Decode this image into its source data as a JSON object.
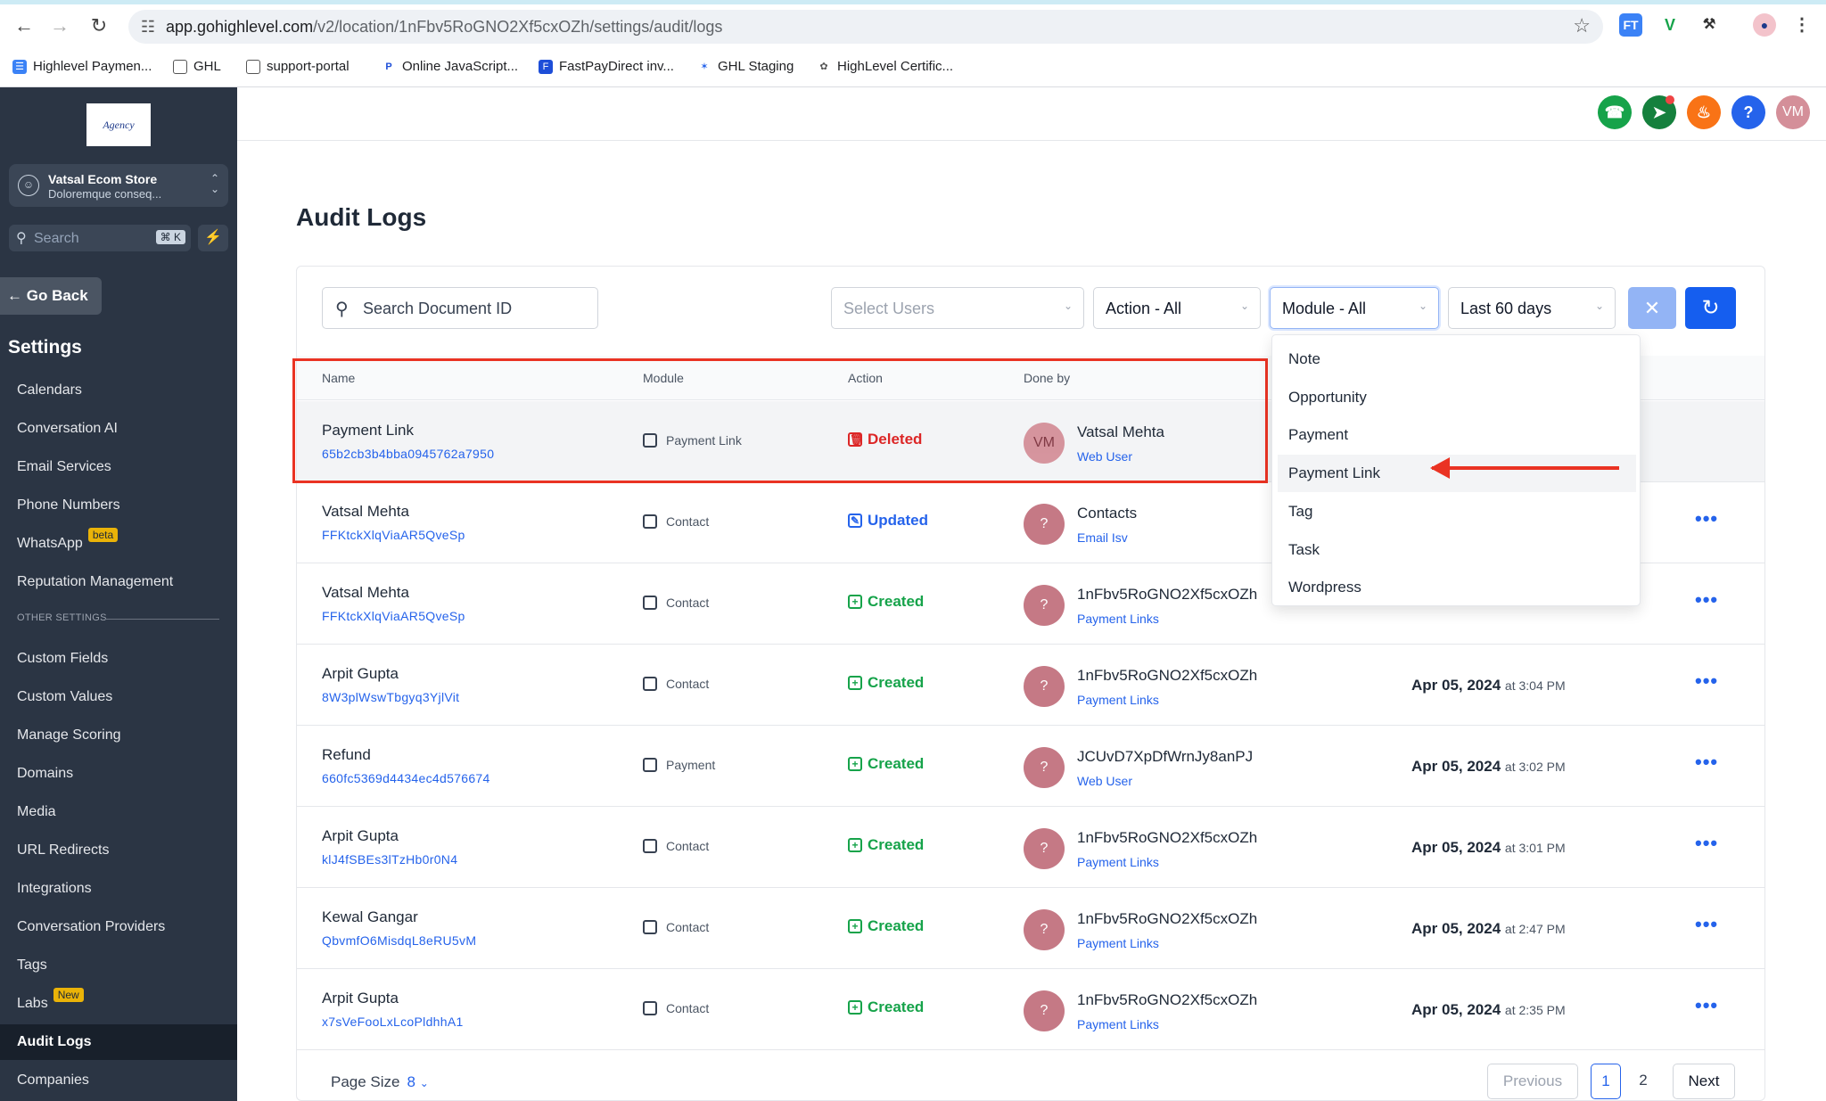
{
  "browser": {
    "url_host": "app.gohighlevel.com",
    "url_path": "/v2/location/1nFbv5RoGNO2Xf5cxOZh/settings/audit/logs",
    "extensions": [
      "FT",
      "V",
      "puzzle",
      "owl"
    ],
    "bookmarks": [
      {
        "label": "Highlevel Paymen...",
        "icon": "doc-icon"
      },
      {
        "label": "GHL",
        "icon": "folder-icon"
      },
      {
        "label": "support-portal",
        "icon": "folder-icon"
      },
      {
        "label": "Online JavaScript...",
        "icon": "paypal-icon"
      },
      {
        "label": "FastPayDirect inv...",
        "icon": "doc-icon"
      },
      {
        "label": "GHL Staging",
        "icon": "star-icon"
      },
      {
        "label": "HighLevel Certific...",
        "icon": "badge-icon"
      }
    ]
  },
  "sidebar": {
    "logo": "Agency",
    "store_name": "Vatsal Ecom Store",
    "store_sub": "Doloremque conseq...",
    "search_placeholder": "Search",
    "search_shortcut": "⌘ K",
    "go_back": "Go Back",
    "section_title": "Settings",
    "other_settings_label": "OTHER SETTINGS",
    "items": [
      {
        "label": "Calendars"
      },
      {
        "label": "Conversation AI"
      },
      {
        "label": "Email Services"
      },
      {
        "label": "Phone Numbers"
      },
      {
        "label": "WhatsApp",
        "badge": "beta"
      },
      {
        "label": "Reputation Management"
      },
      {
        "label": "Custom Fields"
      },
      {
        "label": "Custom Values"
      },
      {
        "label": "Manage Scoring"
      },
      {
        "label": "Domains"
      },
      {
        "label": "Media"
      },
      {
        "label": "URL Redirects"
      },
      {
        "label": "Integrations"
      },
      {
        "label": "Conversation Providers"
      },
      {
        "label": "Tags"
      },
      {
        "label": "Labs",
        "badge": "New"
      },
      {
        "label": "Audit Logs",
        "active": true
      },
      {
        "label": "Companies"
      }
    ]
  },
  "header": {
    "avatar": "VM",
    "colors": {
      "phone": "#16a34a",
      "megaphone": "#15803d",
      "bell": "#f97316",
      "help": "#2563eb",
      "avatar": "#d48f99"
    }
  },
  "page": {
    "title": "Audit Logs",
    "search_placeholder": "Search Document ID",
    "filters": {
      "users": "Select Users",
      "action": "Action - All",
      "module": "Module - All",
      "range": "Last 60 days"
    },
    "columns": {
      "name": "Name",
      "module": "Module",
      "action": "Action",
      "done_by": "Done by"
    },
    "rows": [
      {
        "name": "Payment Link",
        "id": "65b2cb3b4bba0945762a7950",
        "module": "Payment Link",
        "action": "Deleted",
        "avatar": "VM",
        "done_by": "Vatsal Mehta",
        "done_by_sub": "Web User",
        "date": "",
        "time": ""
      },
      {
        "name": "Vatsal Mehta",
        "id": "FFKtckXlqViaAR5QveSp",
        "module": "Contact",
        "action": "Updated",
        "avatar": "?",
        "done_by": "Contacts",
        "done_by_sub": "Email Isv",
        "date": "",
        "time": ""
      },
      {
        "name": "Vatsal Mehta",
        "id": "FFKtckXlqViaAR5QveSp",
        "module": "Contact",
        "action": "Created",
        "avatar": "?",
        "done_by": "1nFbv5RoGNO2Xf5cxOZh",
        "done_by_sub": "Payment Links",
        "date": "",
        "time": ""
      },
      {
        "name": "Arpit Gupta",
        "id": "8W3plWswTbgyq3YjlVit",
        "module": "Contact",
        "action": "Created",
        "avatar": "?",
        "done_by": "1nFbv5RoGNO2Xf5cxOZh",
        "done_by_sub": "Payment Links",
        "date": "Apr 05, 2024",
        "time": "at 3:04 PM"
      },
      {
        "name": "Refund",
        "id": "660fc5369d4434ec4d576674",
        "module": "Payment",
        "action": "Created",
        "avatar": "?",
        "done_by": "JCUvD7XpDfWrnJy8anPJ",
        "done_by_sub": "Web User",
        "date": "Apr 05, 2024",
        "time": "at 3:02 PM"
      },
      {
        "name": "Arpit Gupta",
        "id": "klJ4fSBEs3lTzHb0r0N4",
        "module": "Contact",
        "action": "Created",
        "avatar": "?",
        "done_by": "1nFbv5RoGNO2Xf5cxOZh",
        "done_by_sub": "Payment Links",
        "date": "Apr 05, 2024",
        "time": "at 3:01 PM"
      },
      {
        "name": "Kewal Gangar",
        "id": "QbvmfO6MisdqL8eRU5vM",
        "module": "Contact",
        "action": "Created",
        "avatar": "?",
        "done_by": "1nFbv5RoGNO2Xf5cxOZh",
        "done_by_sub": "Payment Links",
        "date": "Apr 05, 2024",
        "time": "at 2:47 PM"
      },
      {
        "name": "Arpit Gupta",
        "id": "x7sVeFooLxLcoPldhhA1",
        "module": "Contact",
        "action": "Created",
        "avatar": "?",
        "done_by": "1nFbv5RoGNO2Xf5cxOZh",
        "done_by_sub": "Payment Links",
        "date": "Apr 05, 2024",
        "time": "at 2:35 PM"
      }
    ],
    "module_dropdown": {
      "options": [
        "Note",
        "Opportunity",
        "Payment",
        "Payment Link",
        "Tag",
        "Task",
        "Wordpress"
      ],
      "highlighted": "Payment Link"
    },
    "footer": {
      "page_size_label": "Page Size",
      "page_size": "8",
      "previous": "Previous",
      "pages": [
        "1",
        "2"
      ],
      "current_page": "1",
      "next": "Next"
    }
  }
}
